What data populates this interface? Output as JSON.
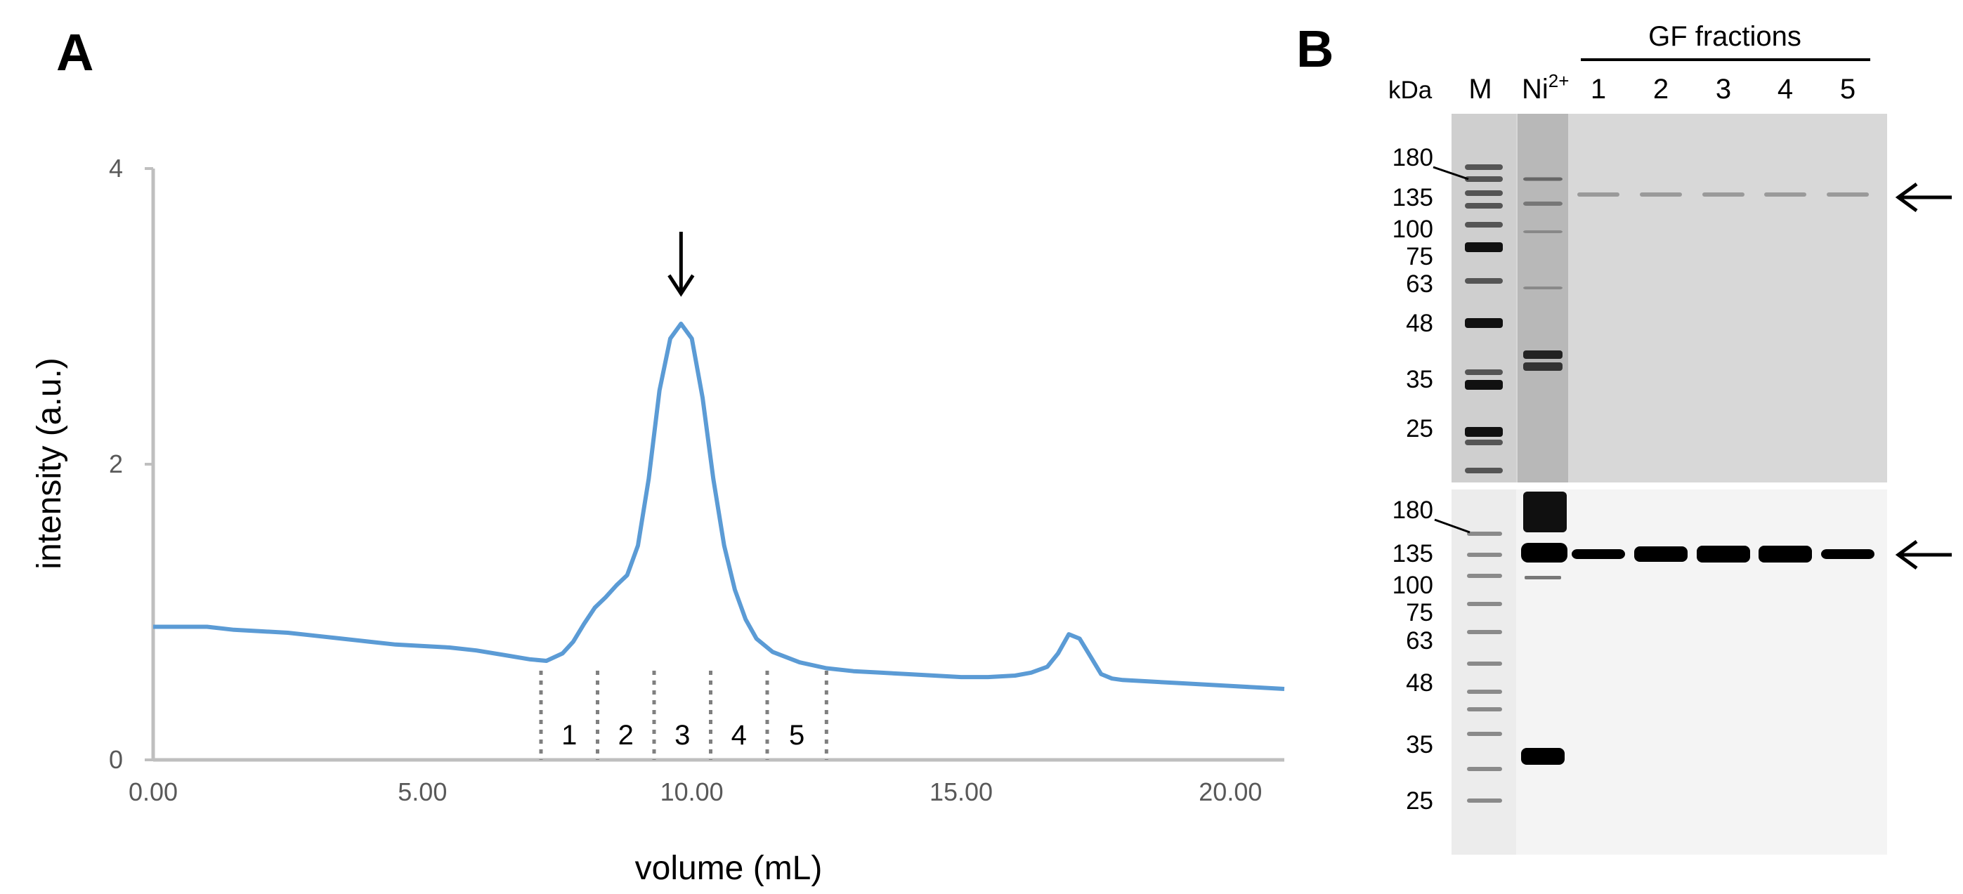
{
  "panels": {
    "a": {
      "letter": "A"
    },
    "b": {
      "letter": "B"
    }
  },
  "chart_data": {
    "type": "line",
    "xlabel": "volume (mL)",
    "ylabel": "intensity (a.u.)",
    "xlim": [
      0,
      21
    ],
    "ylim": [
      0,
      4
    ],
    "xticks": [
      "0.00",
      "5.00",
      "10.00",
      "15.00",
      "20.00"
    ],
    "xtick_values": [
      0,
      5,
      10,
      15,
      20
    ],
    "yticks": [
      "0",
      "2",
      "4"
    ],
    "ytick_values": [
      0,
      2,
      4
    ],
    "grid": false,
    "color": "#5b9bd5",
    "series": [
      {
        "x": [
          0,
          0.5,
          1.0,
          1.5,
          2.0,
          2.5,
          3.0,
          3.5,
          4.0,
          4.5,
          5.0,
          5.5,
          6.0,
          6.5,
          7.0,
          7.3,
          7.6,
          7.8,
          8.0,
          8.2,
          8.4,
          8.6,
          8.8,
          9.0,
          9.2,
          9.4,
          9.6,
          9.8,
          10.0,
          10.2,
          10.4,
          10.6,
          10.8,
          11.0,
          11.2,
          11.5,
          12.0,
          12.5,
          13.0,
          13.5,
          14.0,
          14.5,
          15.0,
          15.5,
          16.0,
          16.3,
          16.6,
          16.8,
          17.0,
          17.2,
          17.4,
          17.6,
          17.8,
          18.0,
          18.5,
          19.0,
          19.5,
          20.0,
          20.5,
          21.0
        ],
        "y": [
          0.9,
          0.9,
          0.9,
          0.88,
          0.87,
          0.86,
          0.84,
          0.82,
          0.8,
          0.78,
          0.77,
          0.76,
          0.74,
          0.71,
          0.68,
          0.67,
          0.72,
          0.8,
          0.92,
          1.03,
          1.1,
          1.18,
          1.25,
          1.45,
          1.9,
          2.5,
          2.85,
          2.95,
          2.85,
          2.45,
          1.9,
          1.45,
          1.15,
          0.95,
          0.82,
          0.73,
          0.66,
          0.62,
          0.6,
          0.59,
          0.58,
          0.57,
          0.56,
          0.56,
          0.57,
          0.59,
          0.63,
          0.72,
          0.85,
          0.82,
          0.7,
          0.58,
          0.55,
          0.54,
          0.53,
          0.52,
          0.51,
          0.5,
          0.49,
          0.48
        ]
      }
    ],
    "fraction_boundaries": [
      7.2,
      8.25,
      9.3,
      10.35,
      11.4,
      12.5
    ],
    "fraction_labels": [
      "1",
      "2",
      "3",
      "4",
      "5"
    ],
    "peak_arrow_x": 9.8
  },
  "gel": {
    "kda_label": "kDa",
    "lane_m": "M",
    "lane_ni": "Ni",
    "lane_ni_sup": "2+",
    "group_label": "GF fractions",
    "fraction_lanes": [
      "1",
      "2",
      "3",
      "4",
      "5"
    ],
    "mw_top": [
      "180",
      "135",
      "100",
      "75",
      "63",
      "48",
      "35",
      "25"
    ],
    "mw_bottom": [
      "180",
      "135",
      "100",
      "75",
      "63",
      "48",
      "35",
      "25"
    ]
  }
}
